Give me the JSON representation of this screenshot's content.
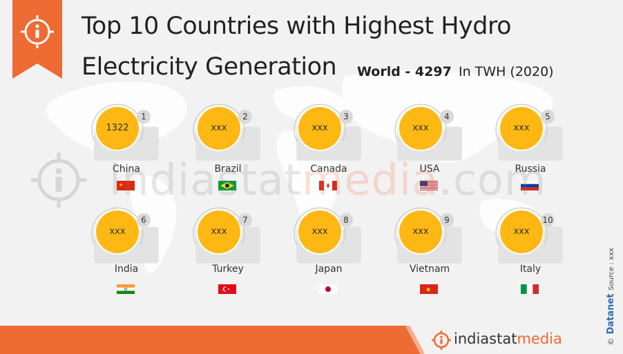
{
  "header": {
    "title_line1": "Top 10 Countries with Highest Hydro",
    "title_line2": "Electricity Generation",
    "world_total": "World - 4297",
    "unit": "In TWH (2020)"
  },
  "watermark": {
    "part1": "indiastat",
    "part2": "media",
    "part3": ".com"
  },
  "countries": [
    {
      "rank": "1",
      "name": "China",
      "value": "1322",
      "flag": "china-flag"
    },
    {
      "rank": "2",
      "name": "Brazil",
      "value": "xxx",
      "flag": "brazil-flag"
    },
    {
      "rank": "3",
      "name": "Canada",
      "value": "xxx",
      "flag": "canada-flag"
    },
    {
      "rank": "4",
      "name": "USA",
      "value": "xxx",
      "flag": "usa-flag"
    },
    {
      "rank": "5",
      "name": "Russia",
      "value": "xxx",
      "flag": "russia-flag"
    },
    {
      "rank": "6",
      "name": "India",
      "value": "xxx",
      "flag": "india-flag"
    },
    {
      "rank": "7",
      "name": "Turkey",
      "value": "xxx",
      "flag": "turkey-flag"
    },
    {
      "rank": "8",
      "name": "Japan",
      "value": "xxx",
      "flag": "japan-flag"
    },
    {
      "rank": "9",
      "name": "Vietnam",
      "value": "xxx",
      "flag": "vietnam-flag"
    },
    {
      "rank": "10",
      "name": "Italy",
      "value": "xxx",
      "flag": "italy-flag"
    }
  ],
  "footer": {
    "logo_part1": "indiastat",
    "logo_part2": "media",
    "datanet": "Datanet",
    "source": "Source : xxx",
    "copyright": "©"
  },
  "colors": {
    "accent_orange": "#ee6b34",
    "value_yellow": "#fdb813",
    "background": "#f2f2f2",
    "card": "#e3e3e3"
  }
}
